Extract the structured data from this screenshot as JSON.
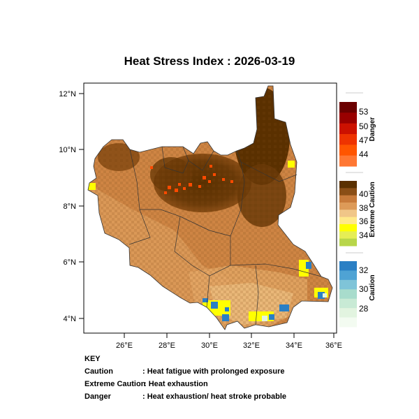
{
  "title": "Heat Stress Index : 2026-03-19",
  "axes": {
    "lat_ticks": [
      "12°N",
      "10°N",
      "8°N",
      "6°N",
      "4°N"
    ],
    "lon_ticks": [
      "26°E",
      "28°E",
      "30°E",
      "32°E",
      "34°E",
      "36°E"
    ]
  },
  "legend": {
    "danger": {
      "label": "Danger",
      "ticks": [
        "53",
        "50",
        "47",
        "44"
      ],
      "colors": [
        "#6b0000",
        "#990000",
        "#cc1100",
        "#ee3300",
        "#ff5500",
        "#ff7733"
      ]
    },
    "extreme": {
      "label": "Extreme Caution",
      "ticks": [
        "40",
        "38",
        "36",
        "34"
      ],
      "colors": [
        "#5a3000",
        "#8a4e16",
        "#c77a3a",
        "#dd9a58",
        "#f0c688",
        "#ffe88a",
        "#ffff00",
        "#e6ee55",
        "#b8d64a"
      ]
    },
    "caution": {
      "label": "Caution",
      "ticks": [
        "32",
        "30",
        "28"
      ],
      "colors": [
        "#2a7fc4",
        "#4fa3d4",
        "#7fc4d8",
        "#a8dccc",
        "#c8ead5",
        "#e2f4e0",
        "#f3fbf1"
      ]
    }
  },
  "key": {
    "heading": "KEY",
    "rows": [
      {
        "term": "Caution",
        "desc": ": Heat fatigue with prolonged exposure"
      },
      {
        "term": "Extreme Caution",
        "desc": ": Heat exhaustion"
      },
      {
        "term": "Danger",
        "desc": ": Heat exhaustion/ heat stroke probable"
      }
    ]
  }
}
